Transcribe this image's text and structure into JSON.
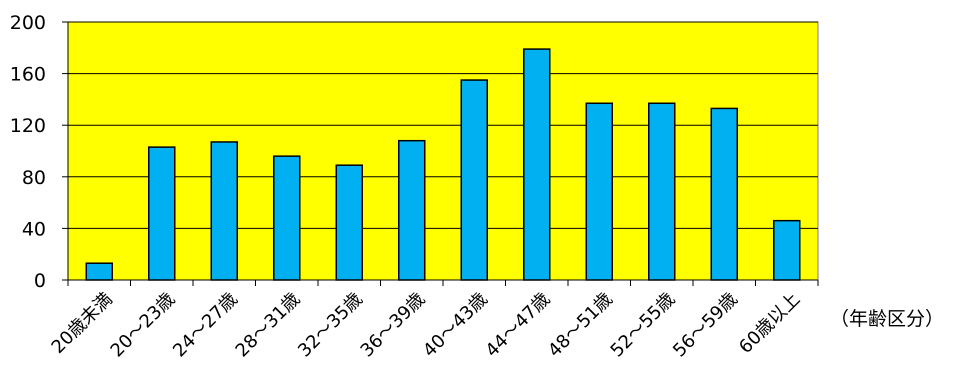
{
  "chart_data": {
    "type": "bar",
    "categories": [
      "20歳未満",
      "20〜23歳",
      "24〜27歳",
      "28〜31歳",
      "32〜35歳",
      "36〜39歳",
      "40〜43歳",
      "44〜47歳",
      "48〜51歳",
      "52〜55歳",
      "56〜59歳",
      "60歳以上"
    ],
    "values": [
      13,
      103,
      107,
      96,
      89,
      108,
      155,
      179,
      137,
      137,
      133,
      46
    ],
    "title": "",
    "xlabel": "（年齢区分）",
    "ylabel": "",
    "ylim": [
      0,
      200
    ],
    "yticks": [
      0,
      40,
      80,
      120,
      160,
      200
    ],
    "grid": true,
    "colors": {
      "plot_background": "#ffff00",
      "bar_fill": "#00b0f0",
      "bar_stroke": "#000000",
      "gridline": "#000000"
    }
  }
}
